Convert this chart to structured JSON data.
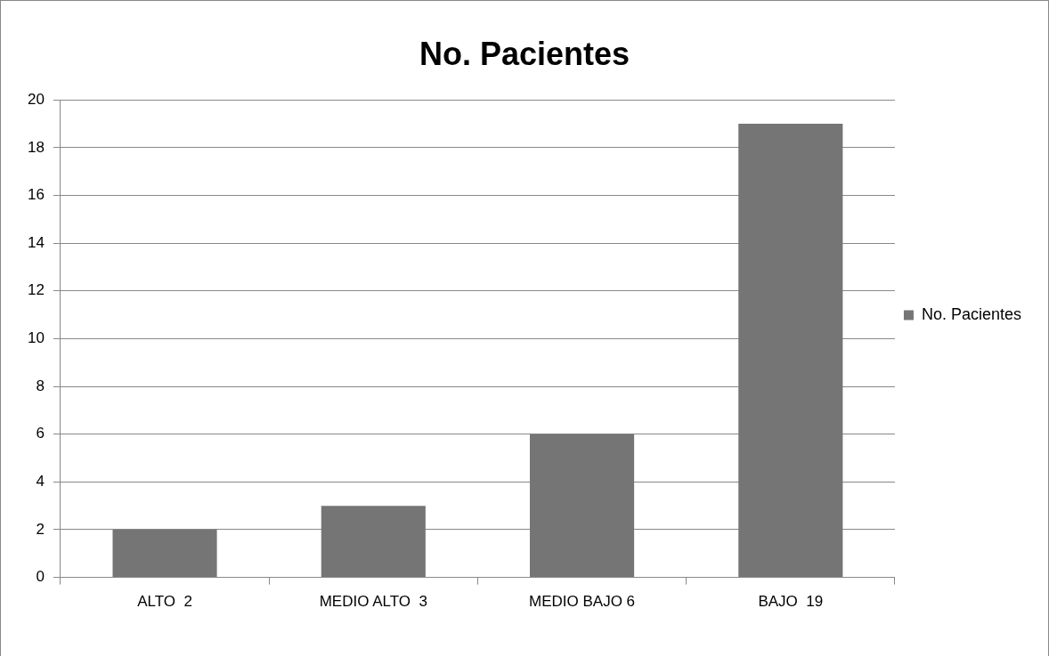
{
  "chart_data": {
    "type": "bar",
    "title": "No. Pacientes",
    "categories": [
      "ALTO  2",
      "MEDIO ALTO  3",
      "MEDIO BAJO 6",
      "BAJO  19"
    ],
    "series": [
      {
        "name": "No. Pacientes",
        "color": "#757575",
        "values": [
          2,
          3,
          6,
          19
        ]
      }
    ],
    "ylim": [
      0,
      20
    ],
    "yticks": [
      0,
      2,
      4,
      6,
      8,
      10,
      12,
      14,
      16,
      18,
      20
    ],
    "grid": "y",
    "legend": "right"
  }
}
